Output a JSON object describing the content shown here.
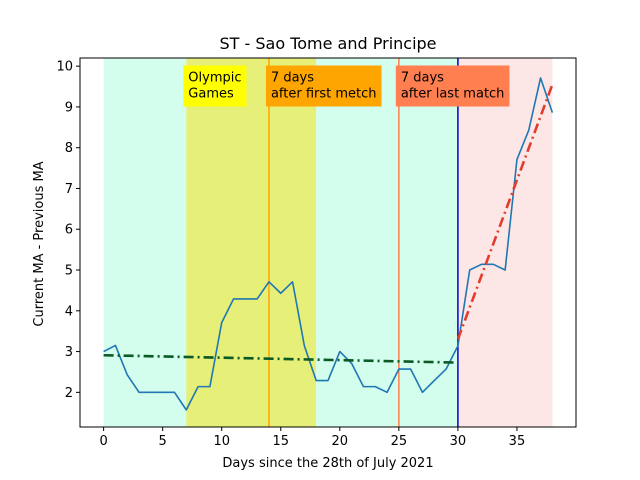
{
  "chart_data": {
    "type": "line",
    "title": "ST - Sao Tome and Principe",
    "xlabel": "Days since the 28th of July 2021",
    "ylabel": "Current MA - Previous MA",
    "xlim": [
      -2,
      40
    ],
    "ylim": [
      1.15,
      10.2
    ],
    "xticks": [
      0,
      5,
      10,
      15,
      20,
      25,
      30,
      35
    ],
    "yticks": [
      2,
      3,
      4,
      5,
      6,
      7,
      8,
      9,
      10
    ],
    "grid": false,
    "regions": [
      {
        "x0": 0,
        "x1": 7,
        "color": "#d3fdec"
      },
      {
        "x0": 7,
        "x1": 18,
        "color": "#e6ef78"
      },
      {
        "x0": 18,
        "x1": 30,
        "color": "#d3fdec"
      },
      {
        "x0": 30,
        "x1": 38,
        "color": "#fde6e6"
      }
    ],
    "vlines": [
      {
        "x": 14,
        "color": "#ffa500"
      },
      {
        "x": 25,
        "color": "#ff7f50"
      },
      {
        "x": 30,
        "color": "#0000cd"
      }
    ],
    "annotations": [
      {
        "x": 7,
        "y": 9.55,
        "text": [
          "Olympic",
          "Games"
        ],
        "bg": "#ffff00"
      },
      {
        "x": 14,
        "y": 9.55,
        "text": [
          "7 days",
          "after first metch"
        ],
        "bg": "#ffa500"
      },
      {
        "x": 25,
        "y": 9.55,
        "text": [
          "7 days",
          "after last match"
        ],
        "bg": "#ff7f50"
      }
    ],
    "series": [
      {
        "color": "#1f77b4",
        "style": "solid",
        "x": [
          0,
          1,
          2,
          3,
          4,
          5,
          6,
          7,
          8,
          9,
          10,
          11,
          12,
          13,
          14,
          15,
          16,
          17,
          18,
          19,
          20,
          21,
          22,
          23,
          24,
          25,
          26,
          27,
          28,
          29,
          30,
          31,
          32,
          33,
          34,
          35,
          36,
          37,
          38
        ],
        "y": [
          3.0,
          3.15,
          2.43,
          2.0,
          2.0,
          2.0,
          2.0,
          1.57,
          2.14,
          2.14,
          3.71,
          4.29,
          4.29,
          4.29,
          4.71,
          4.43,
          4.71,
          3.14,
          2.29,
          2.29,
          3.0,
          2.71,
          2.14,
          2.14,
          2.0,
          2.57,
          2.57,
          2.0,
          2.29,
          2.57,
          3.14,
          5.0,
          5.14,
          5.14,
          5.0,
          7.71,
          8.43,
          9.71,
          8.86
        ]
      },
      {
        "color": "#0b5a26",
        "style": "dashdot",
        "x": [
          0,
          30
        ],
        "y": [
          2.91,
          2.73
        ]
      },
      {
        "color": "#e23c2c",
        "style": "dashdot",
        "x": [
          30,
          38
        ],
        "y": [
          3.3,
          9.55
        ]
      }
    ]
  }
}
